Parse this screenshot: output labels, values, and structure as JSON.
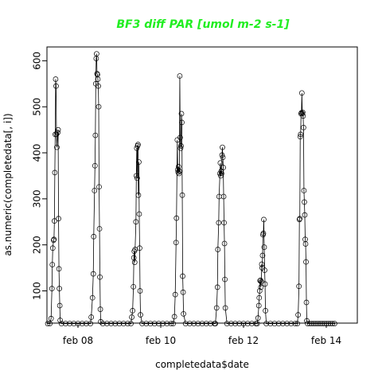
{
  "chart_data": {
    "type": "scatter",
    "title": "BF3 diff PAR [umol m-2 s-1]",
    "title_color": "#22ee22",
    "xlabel": "completedata$date",
    "ylabel": "as.numeric(completedata[, i])",
    "x_unit": "day",
    "x_range_days": [
      7.25,
      14.75
    ],
    "ylim": [
      30,
      630
    ],
    "x_ticks": [
      {
        "label": "feb 08",
        "value": 8
      },
      {
        "label": "feb 10",
        "value": 10
      },
      {
        "label": "feb 12",
        "value": 12
      },
      {
        "label": "feb 14",
        "value": 14
      }
    ],
    "y_ticks": [
      100,
      200,
      300,
      400,
      500,
      600
    ],
    "series": [
      {
        "marker": "open-circle",
        "connected": true,
        "points": [
          [
            7.27,
            29
          ],
          [
            7.32,
            29
          ],
          [
            7.35,
            40
          ],
          [
            7.37,
            105
          ],
          [
            7.38,
            157
          ],
          [
            7.39,
            193
          ],
          [
            7.41,
            210
          ],
          [
            7.42,
            212
          ],
          [
            7.43,
            252
          ],
          [
            7.44,
            357
          ],
          [
            7.45,
            440
          ],
          [
            7.46,
            560
          ],
          [
            7.47,
            545
          ],
          [
            7.48,
            440
          ],
          [
            7.49,
            412
          ],
          [
            7.51,
            444
          ],
          [
            7.52,
            450
          ],
          [
            7.53,
            257
          ],
          [
            7.54,
            148
          ],
          [
            7.55,
            105
          ],
          [
            7.56,
            68
          ],
          [
            7.57,
            36
          ],
          [
            7.6,
            29
          ],
          [
            7.7,
            29
          ],
          [
            7.8,
            29
          ],
          [
            7.9,
            29
          ],
          [
            8.0,
            29
          ],
          [
            8.1,
            29
          ],
          [
            8.2,
            29
          ],
          [
            8.3,
            29
          ],
          [
            8.32,
            43
          ],
          [
            8.35,
            85
          ],
          [
            8.37,
            137
          ],
          [
            8.38,
            218
          ],
          [
            8.4,
            318
          ],
          [
            8.41,
            372
          ],
          [
            8.42,
            438
          ],
          [
            8.43,
            550
          ],
          [
            8.44,
            605
          ],
          [
            8.45,
            615
          ],
          [
            8.46,
            572
          ],
          [
            8.47,
            570
          ],
          [
            8.48,
            560
          ],
          [
            8.49,
            545
          ],
          [
            8.5,
            500
          ],
          [
            8.51,
            326
          ],
          [
            8.52,
            235
          ],
          [
            8.53,
            130
          ],
          [
            8.54,
            60
          ],
          [
            8.55,
            33
          ],
          [
            8.6,
            29
          ],
          [
            8.7,
            29
          ],
          [
            8.8,
            29
          ],
          [
            8.9,
            29
          ],
          [
            9.0,
            29
          ],
          [
            9.1,
            29
          ],
          [
            9.2,
            29
          ],
          [
            9.28,
            29
          ],
          [
            9.3,
            43
          ],
          [
            9.32,
            57
          ],
          [
            9.34,
            109
          ],
          [
            9.35,
            172
          ],
          [
            9.36,
            186
          ],
          [
            9.37,
            162
          ],
          [
            9.38,
            190
          ],
          [
            9.4,
            250
          ],
          [
            9.41,
            350
          ],
          [
            9.42,
            410
          ],
          [
            9.43,
            345
          ],
          [
            9.44,
            415
          ],
          [
            9.45,
            418
          ],
          [
            9.46,
            308
          ],
          [
            9.47,
            380
          ],
          [
            9.48,
            267
          ],
          [
            9.49,
            193
          ],
          [
            9.5,
            100
          ],
          [
            9.51,
            48
          ],
          [
            9.55,
            29
          ],
          [
            9.65,
            29
          ],
          [
            9.75,
            29
          ],
          [
            9.85,
            29
          ],
          [
            9.95,
            29
          ],
          [
            10.05,
            29
          ],
          [
            10.15,
            29
          ],
          [
            10.25,
            29
          ],
          [
            10.3,
            29
          ],
          [
            10.33,
            44
          ],
          [
            10.35,
            92
          ],
          [
            10.37,
            205
          ],
          [
            10.38,
            258
          ],
          [
            10.4,
            428
          ],
          [
            10.41,
            363
          ],
          [
            10.42,
            358
          ],
          [
            10.43,
            370
          ],
          [
            10.44,
            355
          ],
          [
            10.45,
            360
          ],
          [
            10.46,
            567
          ],
          [
            10.47,
            433
          ],
          [
            10.48,
            410
          ],
          [
            10.49,
            415
          ],
          [
            10.5,
            485
          ],
          [
            10.51,
            466
          ],
          [
            10.52,
            308
          ],
          [
            10.53,
            132
          ],
          [
            10.54,
            97
          ],
          [
            10.55,
            50
          ],
          [
            10.6,
            29
          ],
          [
            10.7,
            29
          ],
          [
            10.8,
            29
          ],
          [
            10.9,
            29
          ],
          [
            11.0,
            29
          ],
          [
            11.1,
            29
          ],
          [
            11.2,
            29
          ],
          [
            11.3,
            29
          ],
          [
            11.32,
            29
          ],
          [
            11.35,
            63
          ],
          [
            11.37,
            108
          ],
          [
            11.38,
            190
          ],
          [
            11.4,
            248
          ],
          [
            11.41,
            305
          ],
          [
            11.43,
            355
          ],
          [
            11.44,
            378
          ],
          [
            11.45,
            350
          ],
          [
            11.46,
            360
          ],
          [
            11.47,
            355
          ],
          [
            11.48,
            395
          ],
          [
            11.49,
            412
          ],
          [
            11.5,
            390
          ],
          [
            11.51,
            368
          ],
          [
            11.52,
            305
          ],
          [
            11.53,
            248
          ],
          [
            11.54,
            203
          ],
          [
            11.55,
            125
          ],
          [
            11.56,
            63
          ],
          [
            11.6,
            29
          ],
          [
            11.7,
            29
          ],
          [
            11.8,
            29
          ],
          [
            11.9,
            29
          ],
          [
            12.0,
            29
          ],
          [
            12.1,
            29
          ],
          [
            12.2,
            29
          ],
          [
            12.3,
            29
          ],
          [
            12.33,
            29
          ],
          [
            12.35,
            41
          ],
          [
            12.37,
            68
          ],
          [
            12.38,
            85
          ],
          [
            12.39,
            100
          ],
          [
            12.4,
            122
          ],
          [
            12.41,
            123
          ],
          [
            12.42,
            108
          ],
          [
            12.43,
            120
          ],
          [
            12.44,
            158
          ],
          [
            12.45,
            150
          ],
          [
            12.46,
            177
          ],
          [
            12.47,
            222
          ],
          [
            12.48,
            225
          ],
          [
            12.49,
            255
          ],
          [
            12.5,
            195
          ],
          [
            12.51,
            145
          ],
          [
            12.52,
            115
          ],
          [
            12.53,
            57
          ],
          [
            12.55,
            29
          ],
          [
            12.65,
            29
          ],
          [
            12.75,
            29
          ],
          [
            12.85,
            29
          ],
          [
            12.95,
            29
          ],
          [
            13.05,
            29
          ],
          [
            13.15,
            29
          ],
          [
            13.25,
            29
          ],
          [
            13.3,
            29
          ],
          [
            13.32,
            48
          ],
          [
            13.34,
            110
          ],
          [
            13.35,
            255
          ],
          [
            13.36,
            257
          ],
          [
            13.37,
            435
          ],
          [
            13.38,
            440
          ],
          [
            13.39,
            485
          ],
          [
            13.4,
            487
          ],
          [
            13.41,
            530
          ],
          [
            13.42,
            485
          ],
          [
            13.43,
            488
          ],
          [
            13.44,
            480
          ],
          [
            13.45,
            455
          ],
          [
            13.46,
            318
          ],
          [
            13.47,
            293
          ],
          [
            13.48,
            265
          ],
          [
            13.49,
            212
          ],
          [
            13.5,
            202
          ],
          [
            13.51,
            163
          ],
          [
            13.52,
            75
          ],
          [
            13.53,
            35
          ],
          [
            13.55,
            29
          ],
          [
            13.6,
            29
          ],
          [
            13.65,
            29
          ],
          [
            13.7,
            29
          ],
          [
            13.75,
            29
          ],
          [
            13.8,
            29
          ],
          [
            13.85,
            29
          ],
          [
            13.9,
            29
          ],
          [
            13.95,
            29
          ],
          [
            14.0,
            29
          ],
          [
            14.05,
            29
          ],
          [
            14.1,
            29
          ],
          [
            14.15,
            29
          ],
          [
            14.2,
            29
          ]
        ]
      }
    ]
  }
}
